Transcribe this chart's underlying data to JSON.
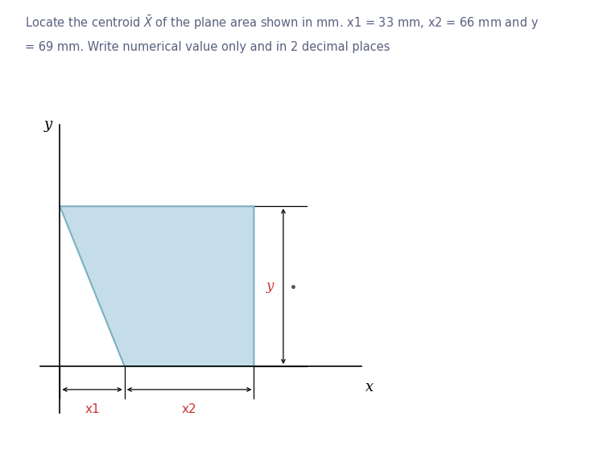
{
  "title_line1": "Locate the centroid $\\bar{X}$ of the plane area shown in mm. x1 = 33 mm, x2 = 66 mm and y",
  "title_line2": "= 69 mm. Write numerical value only and in 2 decimal places",
  "title_color": "#5a6080",
  "title_fontsize": 10.5,
  "shape_fill_color": "#c5dde8",
  "shape_edge_color": "#7ab0c0",
  "axis_color": "#000000",
  "dim_arrow_color": "#000000",
  "x1_label": "x1",
  "x2_label": "x2",
  "y_dim_label": "y",
  "x_axis_label": "x",
  "y_axis_label": "y",
  "red_color": "#cc3333",
  "black_color": "#000000",
  "italic_color": "#333333",
  "background_color": "#ffffff",
  "fig_width": 7.64,
  "fig_height": 5.64,
  "dpi": 100,
  "note_dot_color": "#555555"
}
